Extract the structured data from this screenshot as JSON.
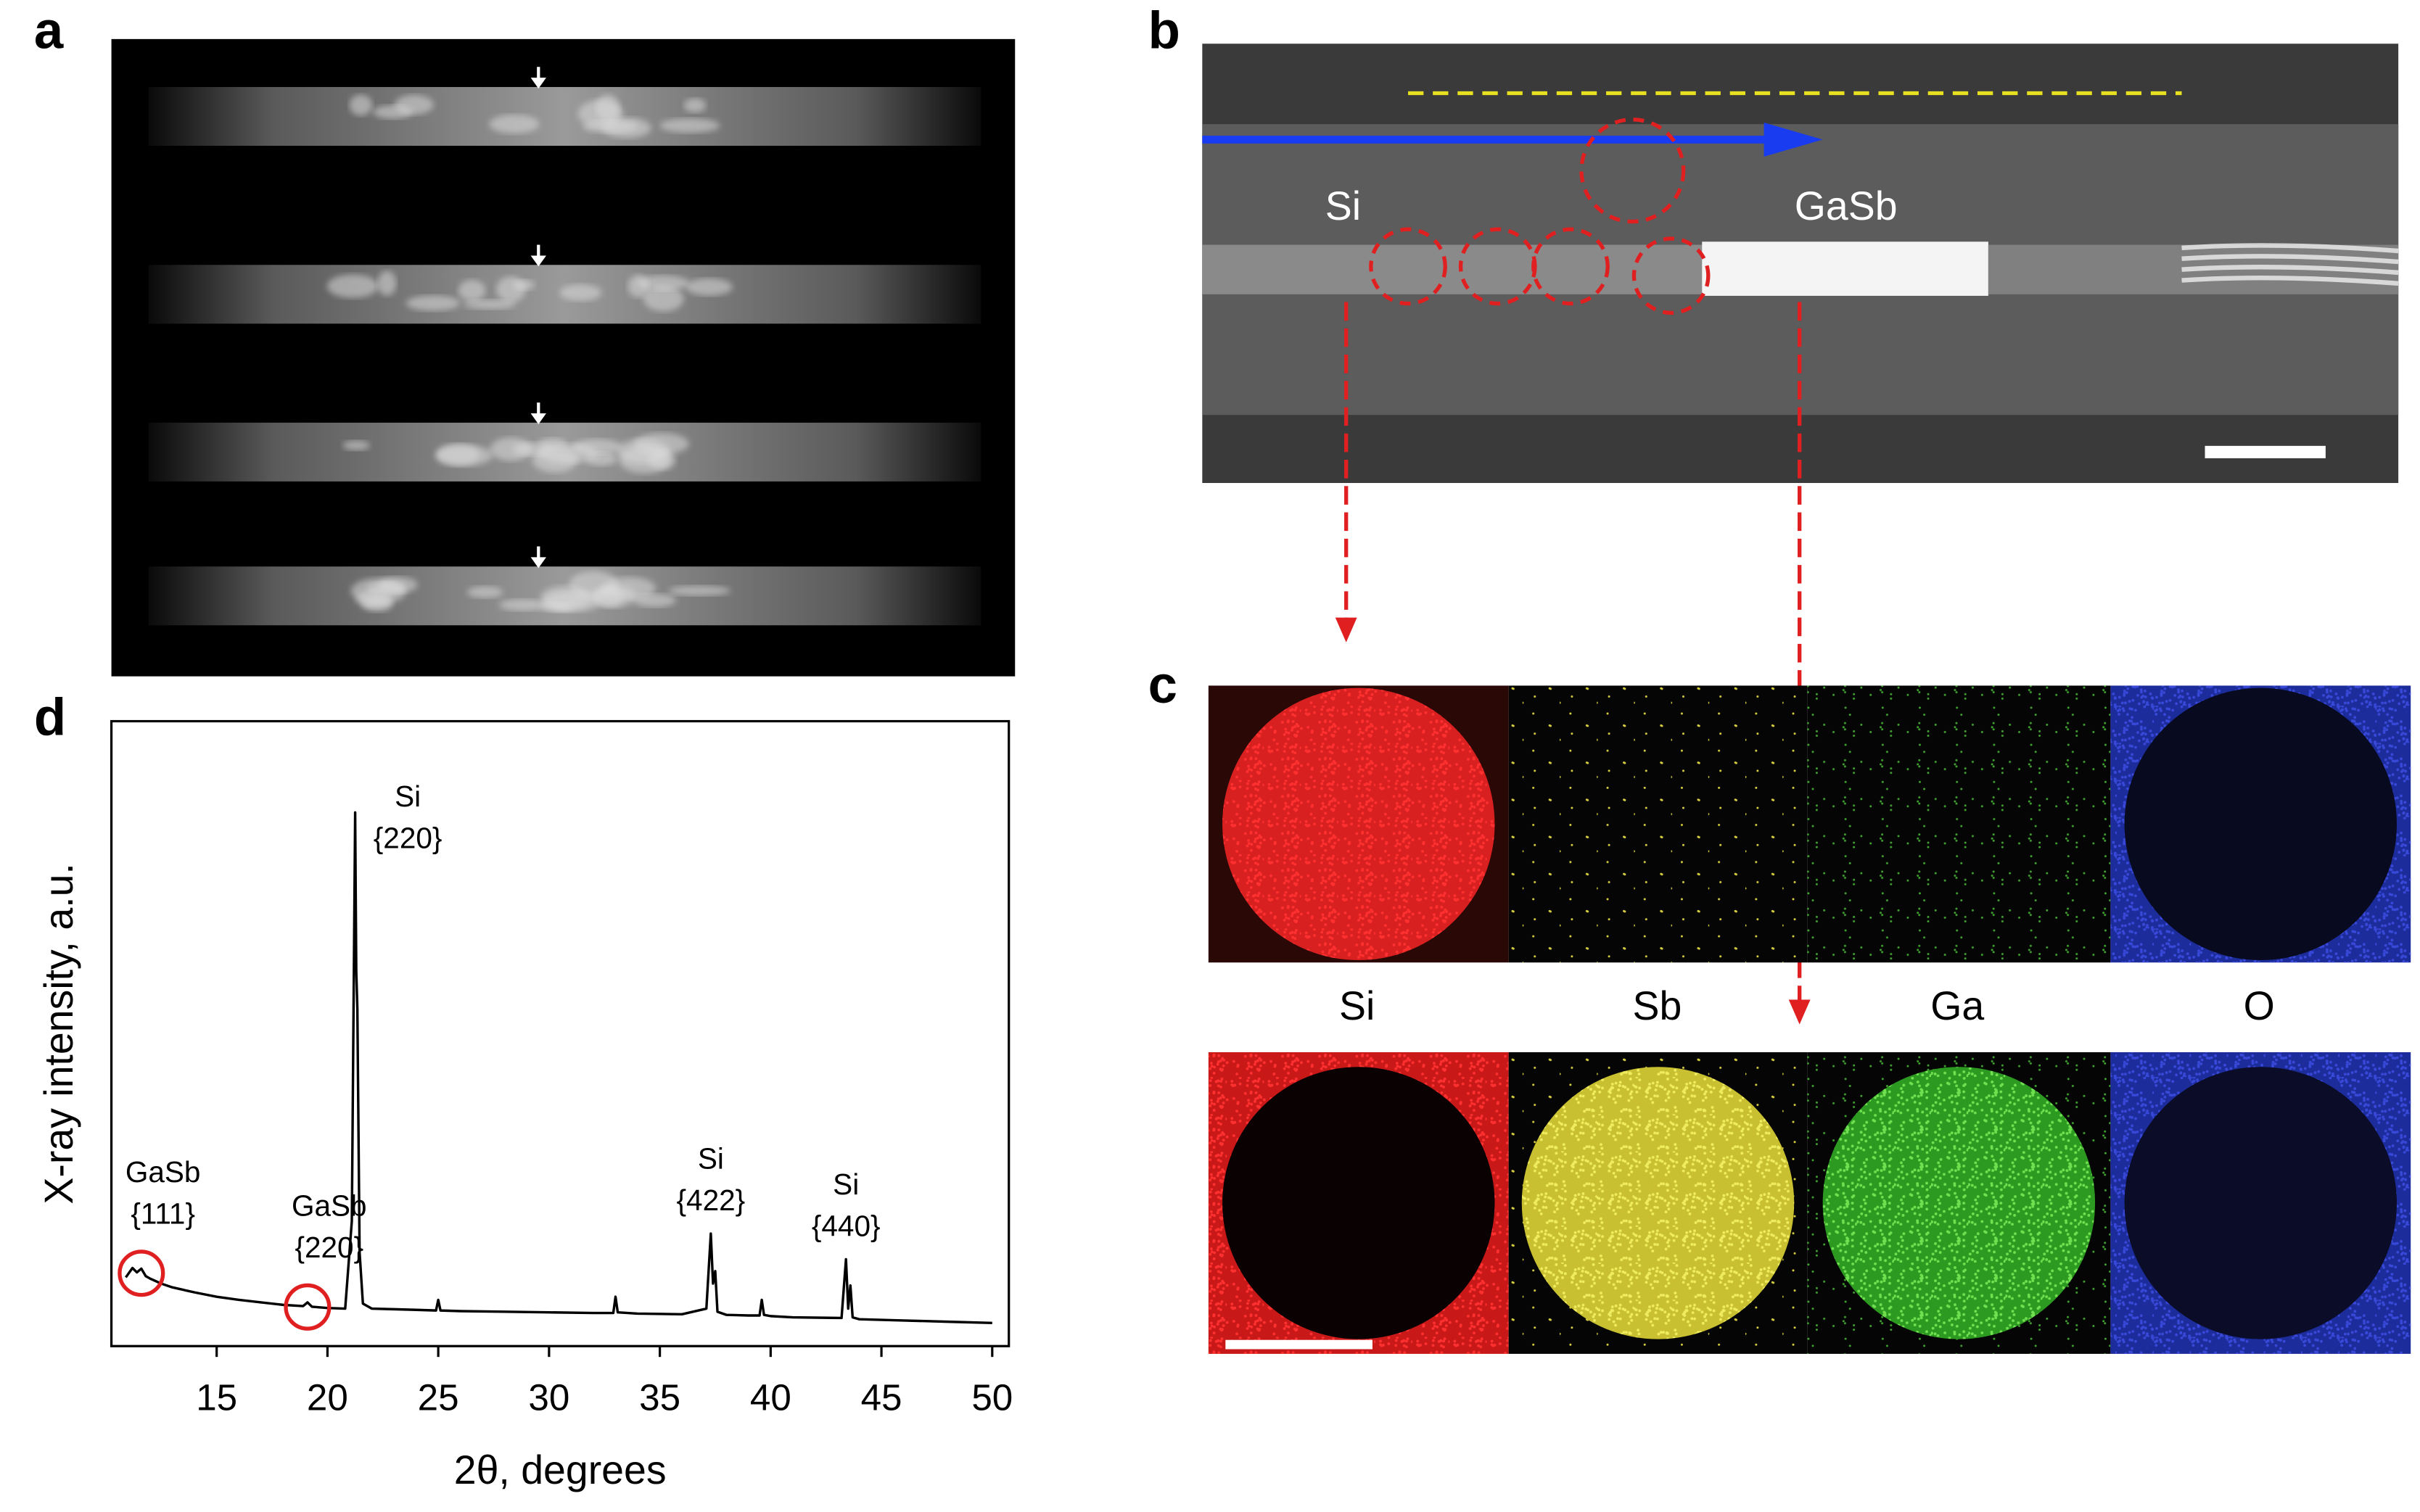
{
  "panel_labels": [
    "a",
    "b",
    "c",
    "d"
  ],
  "panel_b": {
    "labels": [
      "Si",
      "GaSb"
    ]
  },
  "panel_c": {
    "elements": [
      "Si",
      "Sb",
      "Ga",
      "O"
    ]
  },
  "chart_data": {
    "type": "line",
    "xlabel": "2θ, degrees",
    "ylabel": "X-ray intensity, a.u.",
    "xlim": [
      10.25,
      50.75
    ],
    "xticks": [
      15,
      20,
      25,
      30,
      35,
      40,
      45,
      50
    ],
    "ylim": [
      0,
      100
    ],
    "x": [
      10.9,
      11.2,
      11.4,
      11.6,
      11.8,
      12.0,
      12.5,
      13,
      14,
      15,
      16,
      17,
      18,
      18.9,
      19.1,
      19.3,
      20,
      20.8,
      21.1,
      21.25,
      21.3,
      21.35,
      21.45,
      21.6,
      22,
      23,
      24,
      24.9,
      25.0,
      25.1,
      26,
      28,
      30,
      32,
      32.9,
      33.0,
      33.1,
      34,
      36,
      37.1,
      37.3,
      37.4,
      37.5,
      37.6,
      38,
      39,
      39.5,
      39.6,
      39.7,
      40,
      41,
      43.2,
      43.4,
      43.5,
      43.6,
      43.7,
      44,
      46,
      48,
      50
    ],
    "series": [
      {
        "color": "#000000",
        "values": [
          11,
          12.5,
          11.8,
          12.4,
          11.2,
          10.8,
          10,
          9.4,
          8.6,
          7.9,
          7.4,
          7,
          6.6,
          6.4,
          7,
          6.3,
          6.1,
          6,
          20,
          85.4,
          60,
          54,
          15,
          6.8,
          6,
          5.9,
          5.8,
          5.7,
          7.4,
          5.7,
          5.6,
          5.5,
          5.4,
          5.3,
          5.3,
          7.9,
          5.4,
          5.2,
          5.1,
          6,
          18,
          10,
          12,
          5.5,
          5,
          4.9,
          4.9,
          7.4,
          5,
          4.8,
          4.6,
          4.5,
          13.9,
          6,
          9.7,
          4.6,
          4.3,
          4.1,
          3.9,
          3.7
        ]
      }
    ],
    "annotations": [
      {
        "lines": [
          "GaSb",
          "{111}"
        ],
        "x": 11.6,
        "circled": true
      },
      {
        "lines": [
          "GaSb",
          "{220}"
        ],
        "x": 19.1,
        "circled": true
      },
      {
        "lines": [
          "Si",
          "{220}"
        ],
        "x": 21.25,
        "circled": false
      },
      {
        "lines": [
          "Si",
          "{422}"
        ],
        "x": 37.3,
        "circled": false
      },
      {
        "lines": [
          "Si",
          "{440}"
        ],
        "x": 43.4,
        "circled": false
      }
    ]
  }
}
